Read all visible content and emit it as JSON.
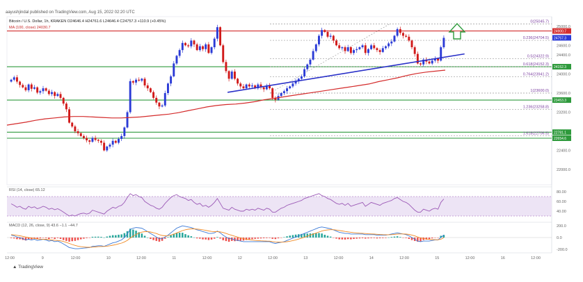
{
  "header": {
    "author_line": "aayushjindal published on TradingView.com, Aug 15, 2022 02:20 UTC",
    "symbol_line": "Bitcoin / U.S. Dollar, 1h, KRAKEN  O24646.4  H24761.6  L24646.4  C24757.3  +110.9 (+0.45%)",
    "ma_line": "MA (100, close)  24030.7"
  },
  "rsi_label": "RSI (14, close)  65.12",
  "macd_label": "MACD (12, 26, close, 9)  43.6  −1.1  −44.7",
  "brand": "TradingView",
  "colors": {
    "up": "#2b3bd6",
    "down": "#d11a1a",
    "ma": "#d42a2a",
    "trend": "#2930c8",
    "support": "#2e9a3c",
    "resistance": "#d32f2f",
    "fib": "#999999",
    "rsi": "#9b59b6",
    "macd": "#3a78d6",
    "signal": "#f08a24",
    "arrow": "#2e9a3c"
  },
  "arrow_icon": "up-arrow-icon",
  "chart_data": {
    "type": "candlestick",
    "title": "Bitcoin / U.S. Dollar, 1h, KRAKEN",
    "price_axis_ticks": [
      25000,
      24600,
      24400,
      24000,
      23600,
      23200,
      22800,
      22400,
      22000
    ],
    "time_axis_ticks": [
      "12:00",
      "9",
      "12:00",
      "10",
      "12:00",
      "11",
      "12:00",
      "12",
      "12:00",
      "13",
      "12:00",
      "14",
      "12:00",
      "15",
      "12:00",
      "16",
      "12:00"
    ],
    "ylim": [
      21680,
      25200
    ],
    "closes": [
      23880,
      23930,
      23840,
      23770,
      23720,
      23660,
      23780,
      23690,
      23720,
      23610,
      23640,
      23700,
      23650,
      23580,
      23620,
      23540,
      23580,
      23500,
      23380,
      23260,
      22980,
      22900,
      22800,
      22760,
      22700,
      22660,
      22610,
      22580,
      22660,
      22620,
      22600,
      22560,
      22400,
      22480,
      22520,
      22600,
      22560,
      22640,
      22700,
      22880,
      23200,
      23850,
      23820,
      23880,
      23860,
      23900,
      23760,
      23700,
      23620,
      23500,
      23400,
      23320,
      23340,
      23600,
      23800,
      23950,
      24220,
      24380,
      24500,
      24650,
      24600,
      24580,
      24700,
      24620,
      24500,
      24580,
      24520,
      24620,
      24440,
      24560,
      24740,
      24980,
      24600,
      24250,
      24060,
      23900,
      24050,
      23900,
      23800,
      23740,
      23700,
      23780,
      23740,
      23760,
      23700,
      23780,
      23720,
      23680,
      23760,
      23700,
      23500,
      23460,
      23540,
      23600,
      23640,
      23700,
      23740,
      23800,
      23850,
      23900,
      23950,
      24100,
      24200,
      24300,
      24480,
      24620,
      24800,
      24920,
      24880,
      24780,
      24800,
      24700,
      24600,
      24540,
      24560,
      24480,
      24560,
      24440,
      24500,
      24520,
      24560,
      24600,
      24440,
      24520,
      24600,
      24540,
      24500,
      24460,
      24540,
      24580,
      24640,
      24680,
      24800,
      24940,
      24860,
      24800,
      24780,
      24700,
      24560,
      24420,
      24220,
      24200,
      24300,
      24260,
      24220,
      24280,
      24320,
      24280,
      24560,
      24757
    ],
    "moving_average": {
      "name": "MA (100, close)",
      "values": [
        22930,
        22960,
        22990,
        23030,
        23060,
        23080,
        23100,
        23110,
        23110,
        23100,
        23090,
        23080,
        23080,
        23090,
        23100,
        23120,
        23140,
        23160,
        23190,
        23230,
        23270,
        23310,
        23340,
        23360,
        23370,
        23390,
        23420,
        23460,
        23490,
        23520,
        23550,
        23580,
        23610,
        23640,
        23670,
        23700,
        23730,
        23760,
        23790,
        23840,
        23880,
        23920,
        23970,
        24010,
        24040,
        24060,
        24080
      ]
    },
    "fibonacci": [
      {
        "label": "0(25045.7)",
        "price": 25045.7
      },
      {
        "label": "0.236(24704.5)",
        "price": 24704.5
      },
      {
        "label": "0.5(24322.9)",
        "price": 24322.9
      },
      {
        "label": "0.618(24152.3)",
        "price": 24152.3
      },
      {
        "label": "0.764(23941.2)",
        "price": 23941.2
      },
      {
        "label": "1(23600.0)",
        "price": 23600.0
      },
      {
        "label": "1.236(23258.8)",
        "price": 23258.8
      },
      {
        "label": "1.618(22706.5)",
        "price": 22706.5
      }
    ],
    "price_labels": [
      {
        "text": "24900.7",
        "price": 24900.7,
        "color": "#d32f2f"
      },
      {
        "text": "24757.3",
        "price": 24757.3,
        "color": "#2b3bd6"
      },
      {
        "text": "24152.3",
        "price": 24152.3,
        "color": "#2e9a3c"
      },
      {
        "text": "23453.3",
        "price": 23453.3,
        "color": "#2e9a3c"
      },
      {
        "text": "22781.1",
        "price": 22781.1,
        "color": "#2e9a3c"
      },
      {
        "text": "22654.6",
        "price": 22654.6,
        "color": "#2e9a3c"
      }
    ],
    "horizontal_lines": [
      {
        "price": 24900.7,
        "color": "#d32f2f"
      },
      {
        "price": 24152.3,
        "color": "#2e9a3c"
      },
      {
        "price": 23453.3,
        "color": "#2e9a3c"
      },
      {
        "price": 22781.1,
        "color": "#2e9a3c"
      },
      {
        "price": 22654.6,
        "color": "#2e9a3c"
      }
    ],
    "trendline": {
      "from": [
        0.405,
        23615
      ],
      "to": [
        0.84,
        24420
      ]
    },
    "rsi": {
      "ticks": [
        80,
        60,
        40
      ],
      "ylim": [
        20,
        90
      ],
      "values": [
        55,
        52,
        48,
        50,
        46,
        44,
        50,
        47,
        49,
        45,
        47,
        50,
        48,
        44,
        46,
        43,
        45,
        42,
        38,
        34,
        30,
        32,
        30,
        33,
        35,
        36,
        34,
        36,
        42,
        40,
        38,
        36,
        34,
        40,
        44,
        48,
        46,
        50,
        52,
        58,
        68,
        76,
        72,
        74,
        70,
        68,
        60,
        56,
        52,
        50,
        46,
        44,
        48,
        56,
        62,
        68,
        72,
        74,
        70,
        68,
        66,
        62,
        64,
        58,
        54,
        56,
        50,
        52,
        48,
        52,
        58,
        66,
        56,
        46,
        44,
        42,
        48,
        44,
        42,
        40,
        40,
        44,
        42,
        44,
        42,
        46,
        44,
        42,
        46,
        44,
        38,
        38,
        42,
        46,
        48,
        52,
        54,
        56,
        58,
        60,
        62,
        66,
        68,
        70,
        72,
        74,
        76,
        72,
        70,
        66,
        64,
        60,
        56,
        54,
        56,
        52,
        56,
        50,
        52,
        54,
        56,
        58,
        50,
        54,
        58,
        56,
        54,
        52,
        56,
        58,
        60,
        62,
        66,
        68,
        64,
        60,
        58,
        54,
        48,
        42,
        38,
        38,
        44,
        42,
        40,
        44,
        46,
        44,
        58,
        65
      ]
    },
    "macd": {
      "ticks": [
        200,
        0,
        -200
      ],
      "ylim": [
        -260,
        260
      ],
      "macd_values": [
        40,
        30,
        10,
        0,
        -20,
        -40,
        -30,
        -40,
        -30,
        -50,
        -40,
        -30,
        -40,
        -60,
        -50,
        -70,
        -60,
        -80,
        -110,
        -140,
        -170,
        -180,
        -190,
        -190,
        -185,
        -180,
        -175,
        -170,
        -150,
        -145,
        -140,
        -140,
        -150,
        -130,
        -110,
        -90,
        -80,
        -60,
        -40,
        0,
        60,
        140,
        160,
        170,
        165,
        160,
        130,
        100,
        70,
        40,
        10,
        -20,
        -20,
        10,
        40,
        80,
        120,
        160,
        180,
        200,
        190,
        180,
        170,
        150,
        130,
        120,
        100,
        90,
        70,
        70,
        80,
        110,
        80,
        40,
        10,
        -20,
        -20,
        -40,
        -50,
        -60,
        -70,
        -70,
        -70,
        -70,
        -70,
        -70,
        -70,
        -70,
        -70,
        -70,
        -90,
        -100,
        -90,
        -80,
        -70,
        -50,
        -30,
        -10,
        10,
        30,
        50,
        70,
        90,
        110,
        130,
        150,
        170,
        180,
        170,
        160,
        150,
        130,
        110,
        90,
        80,
        70,
        70,
        60,
        60,
        60,
        60,
        60,
        50,
        50,
        50,
        50,
        40,
        40,
        40,
        40,
        50,
        60,
        70,
        80,
        70,
        60,
        50,
        30,
        0,
        -30,
        -60,
        -70,
        -60,
        -60,
        -60,
        -50,
        -40,
        -40,
        0,
        44
      ],
      "signal_values": [
        50,
        45,
        38,
        30,
        20,
        10,
        0,
        -10,
        -15,
        -22,
        -27,
        -28,
        -30,
        -36,
        -40,
        -46,
        -50,
        -56,
        -67,
        -82,
        -100,
        -118,
        -133,
        -146,
        -155,
        -161,
        -165,
        -166,
        -163,
        -159,
        -155,
        -152,
        -151,
        -147,
        -140,
        -130,
        -120,
        -108,
        -94,
        -75,
        -48,
        -10,
        24,
        53,
        75,
        92,
        100,
        100,
        94,
        83,
        68,
        50,
        36,
        30,
        32,
        42,
        58,
        78,
        98,
        118,
        132,
        142,
        148,
        148,
        144,
        139,
        131,
        123,
        112,
        104,
        99,
        101,
        97,
        86,
        70,
        52,
        38,
        22,
        8,
        -6,
        -19,
        -29,
        -37,
        -43,
        -48,
        -52,
        -55,
        -58,
        -60,
        -62,
        -68,
        -74,
        -77,
        -78,
        -76,
        -71,
        -63,
        -52,
        -40,
        -26,
        -11,
        5,
        22,
        40,
        58,
        76,
        94,
        111,
        123,
        130,
        134,
        133,
        128,
        120,
        112,
        104,
        97,
        90,
        84,
        79,
        75,
        72,
        68,
        64,
        61,
        59,
        55,
        52,
        50,
        48,
        48,
        50,
        54,
        59,
        61,
        61,
        59,
        53,
        43,
        28,
        10,
        -6,
        -17,
        -25,
        -32,
        -36,
        -37,
        -38,
        -30,
        -1
      ]
    }
  }
}
